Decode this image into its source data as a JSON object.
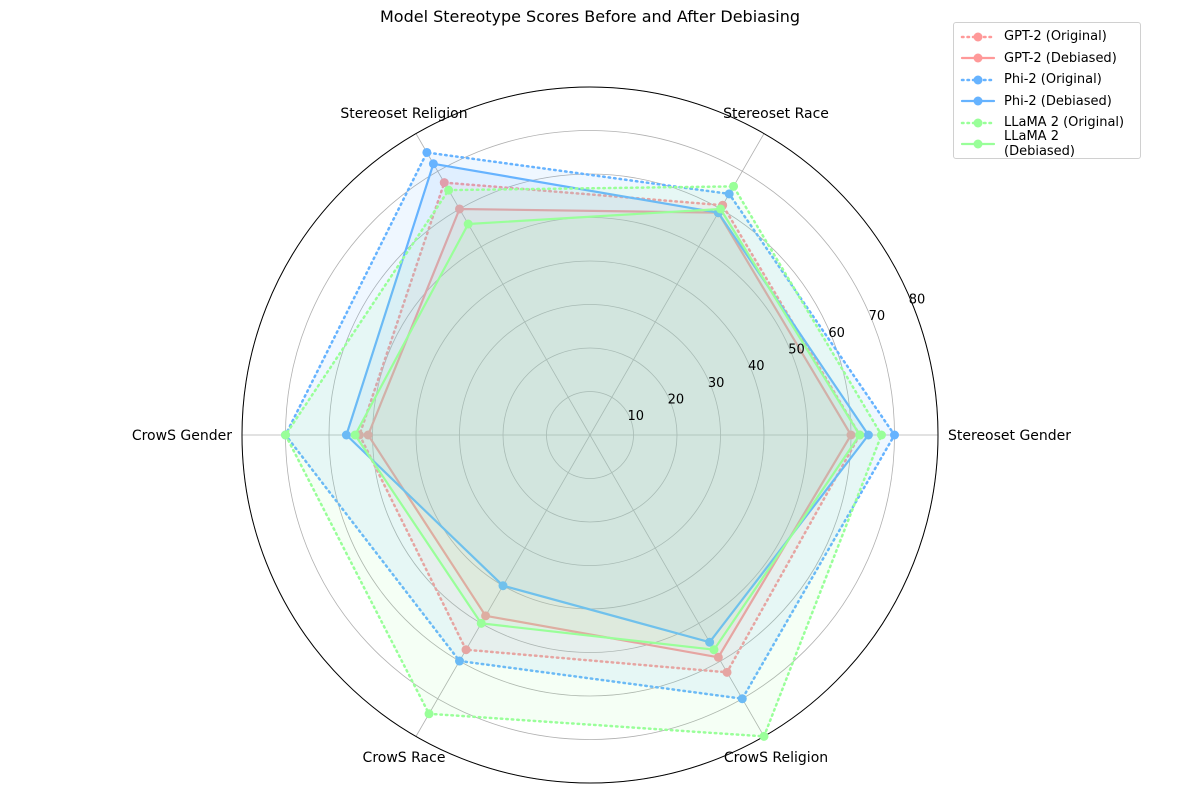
{
  "chart_data": {
    "type": "radar",
    "title": "Model Stereotype Scores Before and After Debiasing",
    "categories": [
      "Stereoset Gender",
      "Stereoset Race",
      "Stereoset Religion",
      "CrowS Gender",
      "CrowS Race",
      "CrowS Religion"
    ],
    "radial_ticks": [
      "10",
      "20",
      "30",
      "40",
      "50",
      "60",
      "70",
      "80"
    ],
    "rlim": [
      0,
      80
    ],
    "grid": true,
    "legend_position": "top-right",
    "series": [
      {
        "name": "GPT-2 (Original)",
        "color": "#ff9999",
        "style": "dotted",
        "values": [
          62,
          61,
          67,
          53,
          57,
          63
        ]
      },
      {
        "name": "GPT-2 (Debiased)",
        "color": "#ff9999",
        "style": "solid",
        "values": [
          60,
          59,
          60,
          51,
          48,
          59
        ]
      },
      {
        "name": "Phi-2 (Original)",
        "color": "#66b3ff",
        "style": "dotted",
        "values": [
          70,
          64,
          75,
          70,
          60,
          70
        ]
      },
      {
        "name": "Phi-2 (Debiased)",
        "color": "#66b3ff",
        "style": "solid",
        "values": [
          64,
          59,
          72,
          56,
          40,
          55
        ]
      },
      {
        "name": "LLaMA 2 (Original)",
        "color": "#99ff99",
        "style": "dotted",
        "values": [
          67,
          66,
          65,
          70,
          74,
          80
        ]
      },
      {
        "name": "LLaMA 2 (Debiased)",
        "color": "#99ff99",
        "style": "solid",
        "values": [
          62,
          60,
          56,
          54,
          50,
          57
        ]
      }
    ]
  }
}
